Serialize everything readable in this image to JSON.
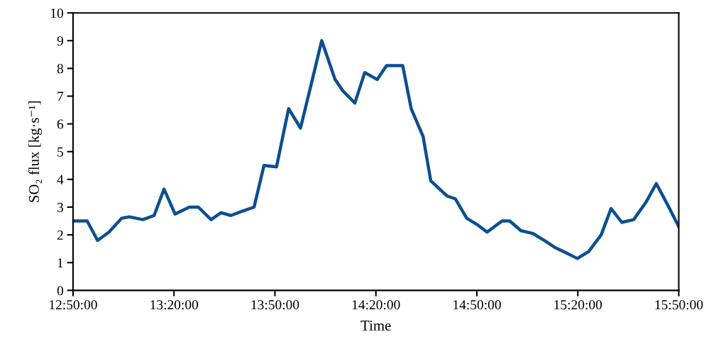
{
  "chart_data": {
    "type": "line",
    "xlabel": "Time",
    "ylabel": "SO₂ flux [kg·s⁻¹]",
    "x": [
      12.8333,
      12.903,
      12.955,
      13.011,
      13.074,
      13.112,
      13.179,
      13.235,
      13.284,
      13.339,
      13.409,
      13.454,
      13.517,
      13.566,
      13.615,
      13.67,
      13.73,
      13.779,
      13.841,
      13.901,
      13.96,
      14.012,
      14.065,
      14.131,
      14.169,
      14.229,
      14.278,
      14.34,
      14.386,
      14.466,
      14.508,
      14.567,
      14.605,
      14.686,
      14.727,
      14.783,
      14.839,
      14.884,
      14.958,
      14.996,
      15.052,
      15.111,
      15.167,
      15.219,
      15.276,
      15.331,
      15.387,
      15.449,
      15.498,
      15.551,
      15.61,
      15.673,
      15.722,
      15.777,
      15.833
    ],
    "series": [
      {
        "color": "#0b4f8f",
        "values": [
          2.5,
          2.5,
          1.8,
          2.1,
          2.6,
          2.65,
          2.55,
          2.7,
          3.65,
          2.75,
          3.0,
          3.0,
          2.55,
          2.8,
          2.7,
          2.85,
          3.0,
          4.5,
          4.45,
          6.55,
          5.85,
          7.4,
          9.0,
          7.6,
          7.2,
          6.75,
          7.85,
          7.6,
          8.1,
          8.1,
          6.55,
          5.55,
          3.95,
          3.4,
          3.3,
          2.6,
          2.35,
          2.1,
          2.5,
          2.5,
          2.15,
          2.05,
          1.8,
          1.55,
          1.35,
          1.15,
          1.4,
          2.0,
          2.95,
          2.45,
          2.55,
          3.2,
          3.85,
          3.1,
          2.3
        ]
      }
    ],
    "xlim": [
      12.8333,
      15.8333
    ],
    "xticks": [
      {
        "value": 12.8333,
        "label": "12:50:00"
      },
      {
        "value": 13.3333,
        "label": "13:20:00"
      },
      {
        "value": 13.8333,
        "label": "13:50:00"
      },
      {
        "value": 14.3333,
        "label": "14:20:00"
      },
      {
        "value": 14.8333,
        "label": "14:50:00"
      },
      {
        "value": 15.3333,
        "label": "15:20:00"
      },
      {
        "value": 15.8333,
        "label": "15:50:00"
      }
    ],
    "ylim": [
      0,
      10
    ],
    "yticks": [
      0,
      1,
      2,
      3,
      4,
      5,
      6,
      7,
      8,
      9,
      10
    ],
    "grid": false,
    "marker": "none",
    "line_style": "solid"
  }
}
